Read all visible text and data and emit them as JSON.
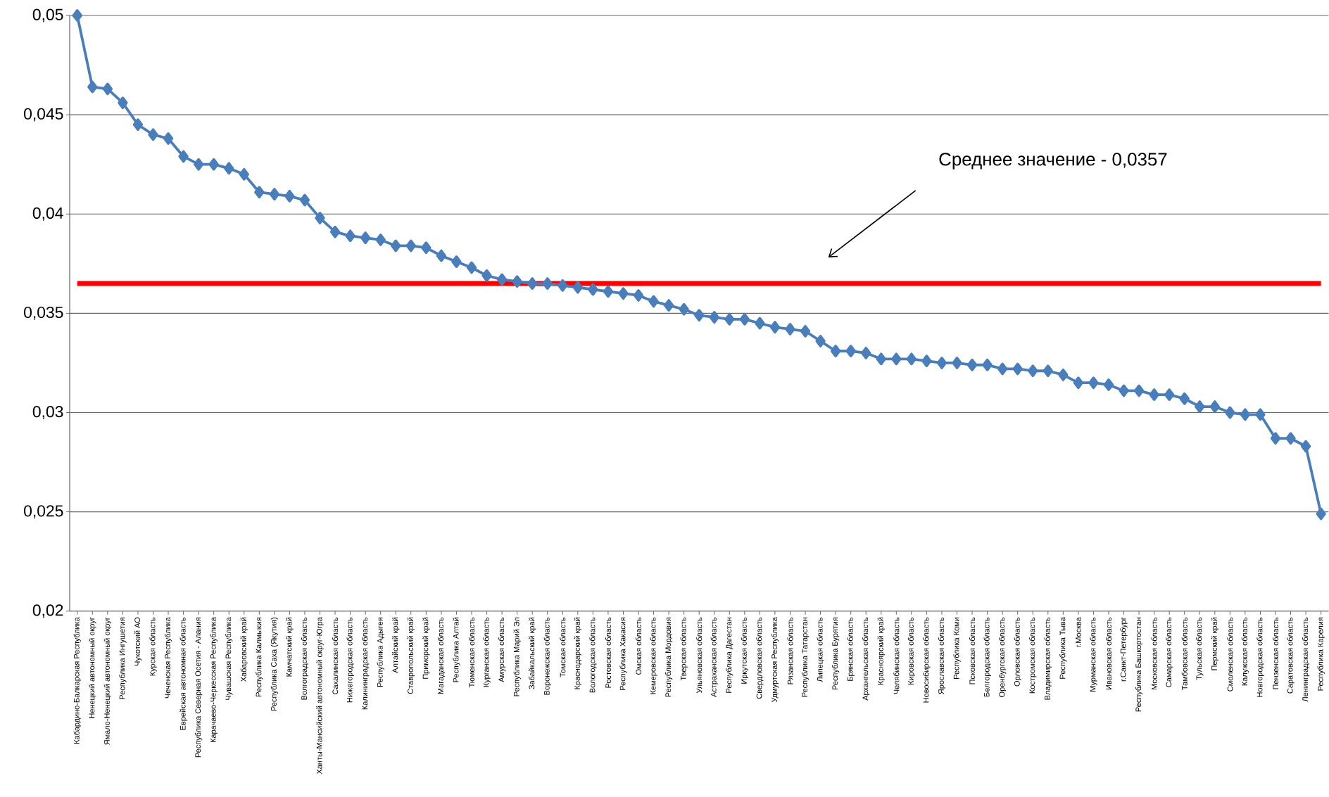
{
  "chart_data": {
    "type": "line",
    "categories": [
      "Кабардино-Балкарская Республика",
      "Ненецкий автономный округ",
      "Ямало-Ненецкий автономный округ",
      "Республика Ингушетия",
      "Чукотский АО",
      "Курская область",
      "Чеченская Республика",
      "Еврейская автономная область",
      "Республика Северная Осетия - Алания",
      "Карачаево-Черкесская Республика",
      "Чувашская Республика",
      "Хабаровский край",
      "Республика Калмыкия",
      "Республика Саха (Якутия)",
      "Камчатский край",
      "Волгоградская область",
      "Ханты-Мансийский автономный округ-Югра",
      "Сахалинская область",
      "Нижегородская область",
      "Калининградская область",
      "Республика Адыгея",
      "Алтайский край",
      "Ставропольский край",
      "Приморский край",
      "Магаданская область",
      "Республика Алтай",
      "Тюменская область",
      "Курганская область",
      "Амурская область",
      "Республика Марий Эл",
      "Забайкальский край",
      "Воронежская область",
      "Томская область",
      "Краснодарский край",
      "Вологодская область",
      "Ростовская область",
      "Республика Хакасия",
      "Омская область",
      "Кемеровская область",
      "Республика Мордовия",
      "Тверская область",
      "Ульяновская область",
      "Астраханская область",
      "Республика Дагестан",
      "Иркутская область",
      "Свердловская область",
      "Удмуртская Республика",
      "Рязанская область",
      "Республика Татарстан",
      "Липецкая область",
      "Республика Бурятия",
      "Брянская область",
      "Архангельская область",
      "Красноярский край",
      "Челябинская область",
      "Кировская область",
      "Новосибирская область",
      "Ярославская область",
      "Республика Коми",
      "Псковская область",
      "Белгородская область",
      "Оренбургская область",
      "Орловская область",
      "Костромская область",
      "Владимирская область",
      "Республика Тыва",
      "г.Москва",
      "Мурманская область",
      "Ивановская область",
      "г.Санкт-Петербург",
      "Республика Башкортостан",
      "Московская область",
      "Самарская область",
      "Тамбовская область",
      "Тульская область",
      "Пермский край",
      "Смоленская область",
      "Калужская область",
      "Новгородская область",
      "Пензенская область",
      "Саратовская область",
      "Ленинградская область",
      "Республика Карелия"
    ],
    "series": [
      {
        "color": "#4a7ebb",
        "values": [
          0.05,
          0.0464,
          0.0463,
          0.0456,
          0.0445,
          0.044,
          0.0438,
          0.0429,
          0.0425,
          0.0425,
          0.0423,
          0.042,
          0.0411,
          0.041,
          0.0409,
          0.0407,
          0.0398,
          0.0391,
          0.0389,
          0.0388,
          0.0387,
          0.0384,
          0.0384,
          0.0383,
          0.0379,
          0.0376,
          0.0373,
          0.0369,
          0.0367,
          0.0366,
          0.0365,
          0.0365,
          0.0364,
          0.0363,
          0.0362,
          0.0361,
          0.036,
          0.0359,
          0.0356,
          0.0354,
          0.0352,
          0.0349,
          0.0348,
          0.0347,
          0.0347,
          0.0345,
          0.0343,
          0.0342,
          0.0341,
          0.0336,
          0.0331,
          0.0331,
          0.033,
          0.0327,
          0.0327,
          0.0327,
          0.0326,
          0.0325,
          0.0325,
          0.0324,
          0.0324,
          0.0322,
          0.0322,
          0.0321,
          0.0321,
          0.0319,
          0.0315,
          0.0315,
          0.0314,
          0.0311,
          0.0311,
          0.0309,
          0.0309,
          0.0307,
          0.0303,
          0.0303,
          0.03,
          0.0299,
          0.0299,
          0.0287,
          0.0287,
          0.0283,
          0.0249
        ]
      }
    ],
    "ylim": [
      0.02,
      0.05
    ],
    "yticks": [
      {
        "value": 0.02,
        "label": "0,02"
      },
      {
        "value": 0.025,
        "label": "0,025"
      },
      {
        "value": 0.03,
        "label": "0,03"
      },
      {
        "value": 0.035,
        "label": "0,035"
      },
      {
        "value": 0.04,
        "label": "0,04"
      },
      {
        "value": 0.045,
        "label": "0,045"
      },
      {
        "value": 0.05,
        "label": "0,05"
      }
    ],
    "grid": "y",
    "marker": "diamond",
    "line_style": "solid",
    "ref_lines": [
      {
        "axis": "y",
        "value": 0.0365,
        "color": "#ff0000"
      }
    ],
    "annotations": [
      "Среднее значение - 0,0357"
    ]
  }
}
